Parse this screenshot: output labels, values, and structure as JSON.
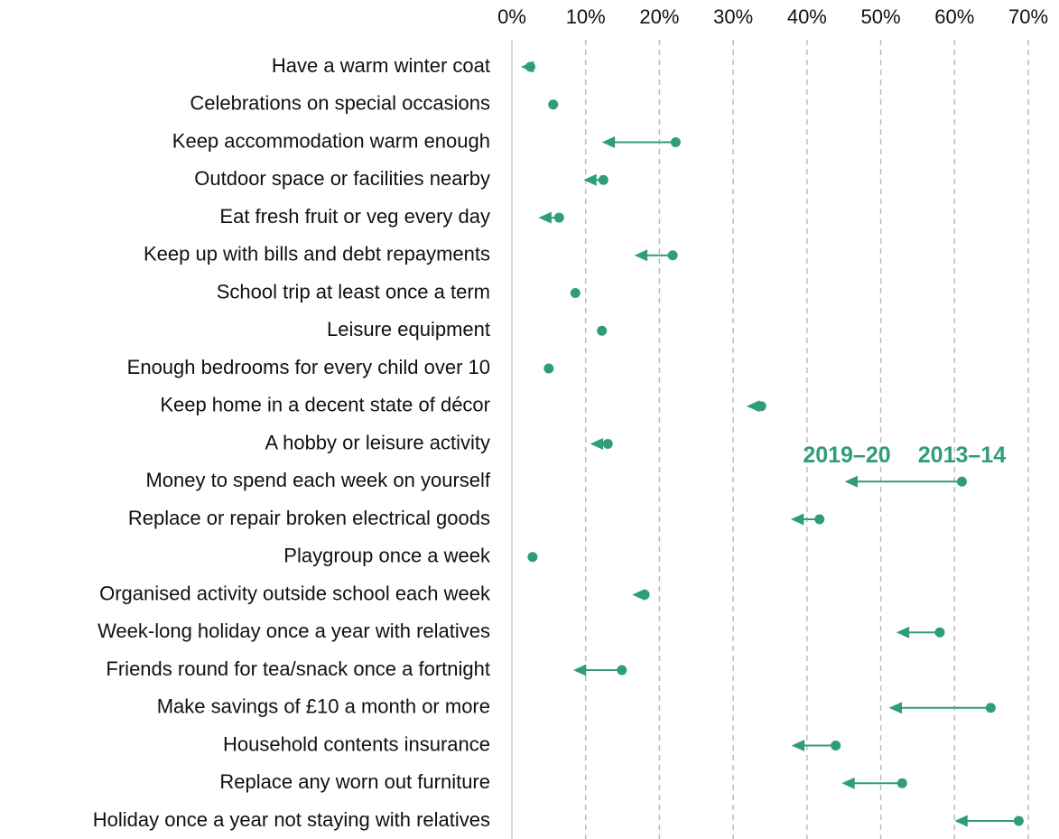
{
  "chart_data": {
    "type": "arrow",
    "categories": [
      "Have a warm winter coat",
      "Celebrations on special occasions",
      "Keep accommodation warm enough",
      "Outdoor space or facilities nearby",
      "Eat fresh fruit or veg every day",
      "Keep up with bills and debt repayments",
      "School trip at least once a term",
      "Leisure equipment",
      "Enough bedrooms for every child over 10",
      "Keep home in a decent state of décor",
      "A hobby or leisure activity",
      "Money to spend each week on yourself",
      "Replace or repair broken electrical goods",
      "Playgroup once a week",
      "Organised activity outside school each week",
      "Week-long holiday once a year with relatives",
      "Friends round for tea/snack once a fortnight",
      "Make savings of £10 a month or more",
      "Household contents insurance",
      "Replace any worn out furniture",
      "Holiday once a year not staying with relatives"
    ],
    "series": [
      {
        "name": "2013–14",
        "color": "#2f9e74",
        "values": [
          2.5,
          5.6,
          22.2,
          12.4,
          6.4,
          21.8,
          8.6,
          12.2,
          5.0,
          33.8,
          13.0,
          61.0,
          41.7,
          2.8,
          18.0,
          58.0,
          14.9,
          64.9,
          43.9,
          52.9,
          68.7
        ]
      },
      {
        "name": "2019–20",
        "color": "#2f9e74",
        "values": [
          1.5,
          5.6,
          12.5,
          10.0,
          3.9,
          16.9,
          8.6,
          12.2,
          5.0,
          32.1,
          10.9,
          45.4,
          38.1,
          2.8,
          16.6,
          52.4,
          8.6,
          51.4,
          38.2,
          45.0,
          60.3
        ]
      }
    ],
    "xlim": [
      0,
      70
    ],
    "xticks": [
      {
        "value": 0,
        "label": "0%"
      },
      {
        "value": 10,
        "label": "10%"
      },
      {
        "value": 20,
        "label": "20%"
      },
      {
        "value": 30,
        "label": "30%"
      },
      {
        "value": 40,
        "label": "40%"
      },
      {
        "value": 50,
        "label": "50%"
      },
      {
        "value": 60,
        "label": "60%"
      },
      {
        "value": 70,
        "label": "70%"
      }
    ],
    "grid": true,
    "annotation_row": 11
  }
}
